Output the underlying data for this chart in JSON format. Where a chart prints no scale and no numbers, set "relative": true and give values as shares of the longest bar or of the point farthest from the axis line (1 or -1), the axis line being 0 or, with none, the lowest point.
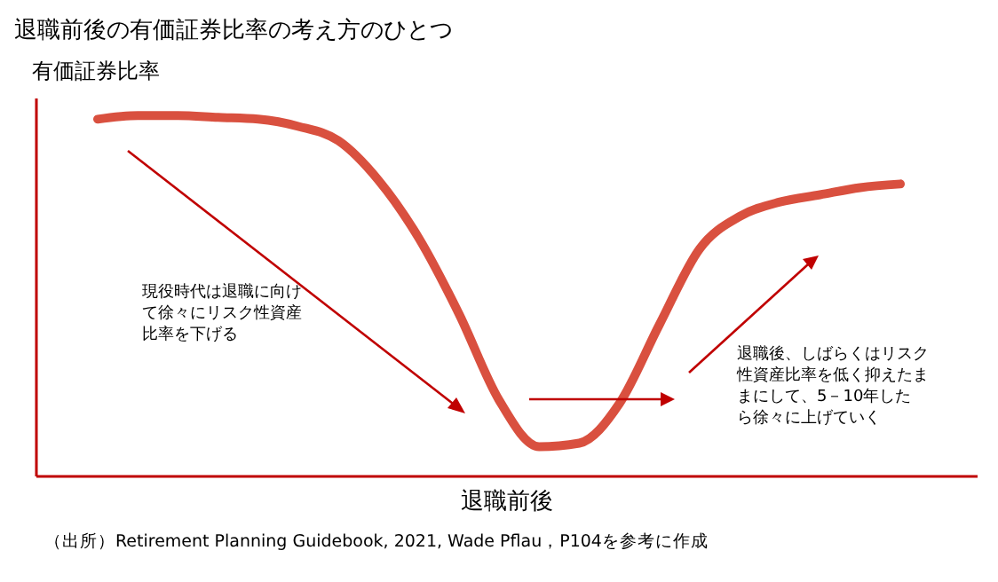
{
  "chart_data": {
    "type": "line",
    "title": "退職前後の有価証券比率の考え方のひとつ",
    "ylabel": "有価証券比率",
    "xlabel": "退職前後",
    "relative": true,
    "categories": [
      null,
      null,
      null,
      null,
      null,
      null,
      null,
      null,
      null,
      null,
      null,
      null,
      null,
      null,
      null,
      null,
      null,
      null,
      null,
      null,
      null
    ],
    "series": [
      {
        "color": "#d9503f",
        "values": [
          0.99,
          1.0,
          1.0,
          0.995,
          0.99,
          0.97,
          0.93,
          0.82,
          0.66,
          0.45,
          0.21,
          0.08,
          0.09,
          0.2,
          0.42,
          0.63,
          0.72,
          0.76,
          0.78,
          0.8,
          0.81
        ]
      }
    ],
    "annotations": [
      "現役時代は退職に向けて徐々にリスク性資産比率を下げる",
      "退職後、しばらくはリスク性資産比率を低く抑えたままにして、5－10年したら徐々に上げていく",
      "（出所）Retirement Planning Guidebook, 2021, Wade Pflau，P104を参考に作成"
    ],
    "legend": false,
    "marker": "none",
    "line_style": "solid",
    "grid": false
  }
}
